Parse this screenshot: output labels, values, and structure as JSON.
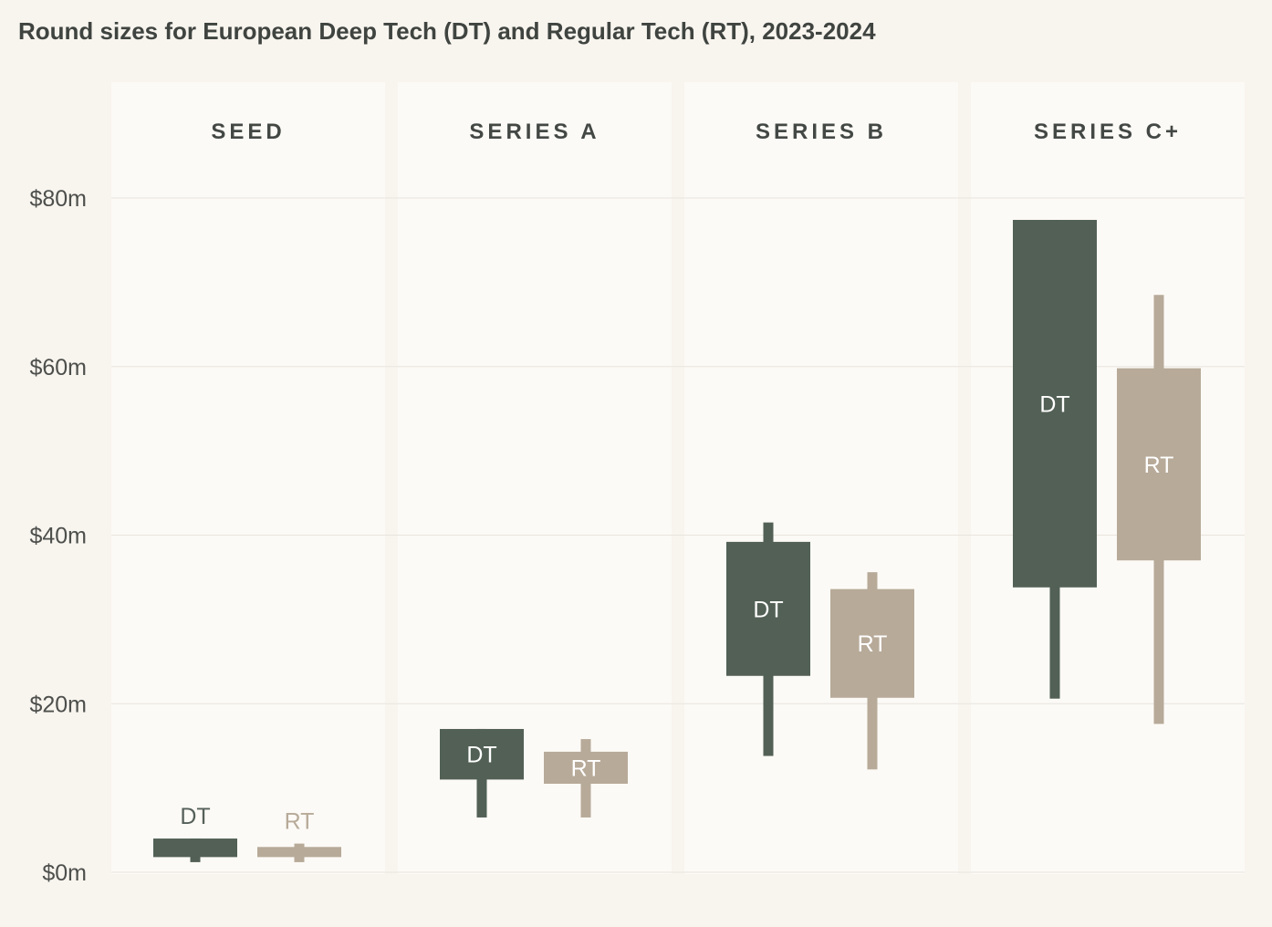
{
  "chart_data": {
    "type": "boxplot",
    "title": "Round sizes for European Deep Tech (DT) and Regular Tech (RT), 2023-2024",
    "y_ticks": [
      "$0m",
      "$20m",
      "$40m",
      "$60m",
      "$80m"
    ],
    "y_tick_values": [
      0,
      20,
      40,
      60,
      80
    ],
    "ylim": [
      0,
      80
    ],
    "legend": "none",
    "colors": {
      "DT": "#526055",
      "RT": "#b7aa99",
      "background": "#f8f4ee",
      "panel": "#fcfaf6",
      "grid": "#e8e4dd"
    },
    "panels": [
      {
        "name": "SEED",
        "series": [
          {
            "name": "DT",
            "whisker_low": 1.2,
            "q1": 1.8,
            "q3": 4.0,
            "whisker_high": 4.0,
            "label_position": "above"
          },
          {
            "name": "RT",
            "whisker_low": 1.2,
            "q1": 1.8,
            "q3": 3.0,
            "whisker_high": 3.4,
            "label_position": "above"
          }
        ]
      },
      {
        "name": "SERIES A",
        "series": [
          {
            "name": "DT",
            "whisker_low": 6.5,
            "q1": 11.0,
            "q3": 17.0,
            "whisker_high": 17.0,
            "label_position": "inside"
          },
          {
            "name": "RT",
            "whisker_low": 6.5,
            "q1": 10.5,
            "q3": 14.3,
            "whisker_high": 15.8,
            "label_position": "inside"
          }
        ]
      },
      {
        "name": "SERIES B",
        "series": [
          {
            "name": "DT",
            "whisker_low": 13.8,
            "q1": 23.3,
            "q3": 39.2,
            "whisker_high": 41.5,
            "label_position": "inside"
          },
          {
            "name": "RT",
            "whisker_low": 12.2,
            "q1": 20.7,
            "q3": 33.6,
            "whisker_high": 35.6,
            "label_position": "inside"
          }
        ]
      },
      {
        "name": "SERIES C+",
        "series": [
          {
            "name": "DT",
            "whisker_low": 20.6,
            "q1": 33.8,
            "q3": 77.4,
            "whisker_high": 77.4,
            "label_position": "inside"
          },
          {
            "name": "RT",
            "whisker_low": 17.6,
            "q1": 37.0,
            "q3": 59.8,
            "whisker_high": 68.5,
            "label_position": "inside"
          }
        ]
      }
    ]
  }
}
